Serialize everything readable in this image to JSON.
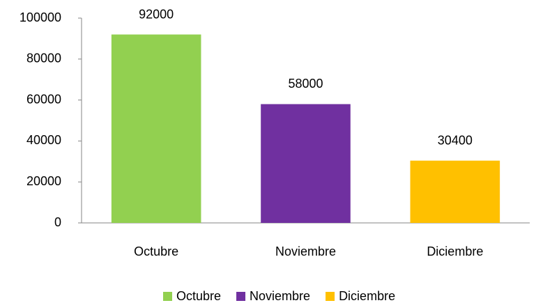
{
  "chart_data": {
    "type": "bar",
    "categories": [
      "Octubre",
      "Noviembre",
      "Diciembre"
    ],
    "values": [
      92000,
      58000,
      30400
    ],
    "colors": [
      "#92d050",
      "#7030a0",
      "#ffc000"
    ],
    "ylim": [
      0,
      100000
    ],
    "yticks": [
      0,
      20000,
      40000,
      60000,
      80000,
      100000
    ],
    "grid": false,
    "legend": "bottom"
  }
}
